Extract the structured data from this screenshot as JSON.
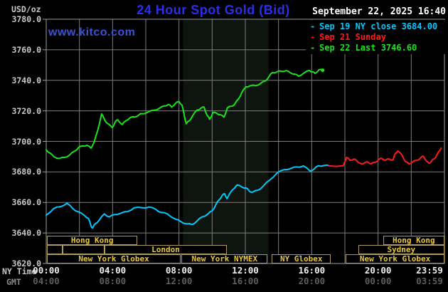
{
  "header": {
    "units_label": "USD/oz",
    "title": "24 Hour Spot Gold (Bid)",
    "date": "September 22, 2025 16:40",
    "watermark": "www.kitco.com"
  },
  "legend": [
    {
      "key": "sep19",
      "label": "Sep 19 NY close 3684.00",
      "color": "#00c8ff"
    },
    {
      "key": "sep21",
      "label": "Sep 21 Sunday",
      "color": "#ff1a1a"
    },
    {
      "key": "sep22",
      "label": "Sep 22 Last 3746.60",
      "color": "#1ae31a"
    }
  ],
  "colors": {
    "background": "#000000",
    "grid": "#7d7d7d",
    "axis_frame": "#9a9a9a",
    "session_shade": "#0e150e",
    "session_border": "#b09a5a",
    "session_text": "#e8c63a",
    "title_blue": "#2b2fe8",
    "watermark_blue": "#3a52d5"
  },
  "axes": {
    "y_ticks": [
      "3780.0",
      "3760.0",
      "3740.0",
      "3720.0",
      "3700.0",
      "3680.0",
      "3660.0",
      "3640.0",
      "3620.0"
    ],
    "x_row1_label": "NY Time",
    "x_row2_label": "GMT",
    "x_tick_hours": [
      0,
      4,
      8,
      12,
      16,
      20,
      23.983
    ],
    "x_ticks_ny": [
      "00:00",
      "04:00",
      "08:00",
      "12:00",
      "16:00",
      "20:00",
      "23:59"
    ],
    "x_ticks_gmt": [
      "04:00",
      "08:00",
      "12:00",
      "16:00",
      "20:00",
      "00:00",
      "03:59"
    ]
  },
  "sessions": {
    "rows": [
      {
        "boxes": [
          {
            "start_h": 0.05,
            "end_h": 5.5,
            "label": "Hong Kong"
          },
          {
            "start_h": 20.3,
            "end_h": 24.0,
            "label": "Hong Kong"
          }
        ]
      },
      {
        "boxes": [
          {
            "start_h": 0.05,
            "end_h": 1.0,
            "label": ""
          },
          {
            "start_h": 1.0,
            "end_h": 3.5,
            "label": ""
          },
          {
            "start_h": 3.5,
            "end_h": 10.9,
            "label": "London"
          },
          {
            "start_h": 18.8,
            "end_h": 24.0,
            "label": "Sydney"
          }
        ]
      },
      {
        "boxes": [
          {
            "start_h": 0.05,
            "end_h": 8.1,
            "label": "New York Globex"
          },
          {
            "start_h": 8.15,
            "end_h": 13.35,
            "label": "New York NYMEX"
          },
          {
            "start_h": 13.6,
            "end_h": 17.15,
            "label": "NY Globex"
          },
          {
            "start_h": 18.05,
            "end_h": 24.0,
            "label": "New York Globex"
          }
        ]
      }
    ]
  },
  "chart_data": {
    "type": "line",
    "title": "24 Hour Spot Gold (Bid)",
    "ylabel": "USD/oz",
    "xlabel": "NY Time (hours 00:00-23:59)",
    "xlim": [
      0,
      24
    ],
    "ylim": [
      3620,
      3780
    ],
    "y_gridline_step": 20,
    "x_gridline_step_hours": 2,
    "grid": true,
    "legend_position": "top-right",
    "shaded_session_hours": [
      8.25,
      13.4
    ],
    "series": [
      {
        "key": "sep19",
        "name": "Sep 19 NY close 3684.00",
        "color": "#00c8ff",
        "points": [
          [
            0,
            3651.7
          ],
          [
            0.45,
            3656
          ],
          [
            0.85,
            3657.2
          ],
          [
            1.25,
            3659.5
          ],
          [
            1.6,
            3656
          ],
          [
            1.9,
            3654
          ],
          [
            2.3,
            3651.5
          ],
          [
            2.55,
            3649.5
          ],
          [
            2.7,
            3644.5
          ],
          [
            2.8,
            3643.3
          ],
          [
            2.95,
            3646
          ],
          [
            3.2,
            3648.5
          ],
          [
            3.5,
            3652.5
          ],
          [
            3.8,
            3650.5
          ],
          [
            4.1,
            3652
          ],
          [
            4.5,
            3653
          ],
          [
            4.9,
            3654
          ],
          [
            5.3,
            3656.5
          ],
          [
            5.8,
            3656.5
          ],
          [
            6.2,
            3657
          ],
          [
            6.6,
            3655.5
          ],
          [
            6.9,
            3653.5
          ],
          [
            7.3,
            3652.5
          ],
          [
            7.8,
            3649
          ],
          [
            8.1,
            3647.5
          ],
          [
            8.45,
            3646
          ],
          [
            8.8,
            3645.5
          ],
          [
            9.1,
            3648
          ],
          [
            9.4,
            3650.5
          ],
          [
            9.75,
            3652.5
          ],
          [
            10,
            3654.5
          ],
          [
            10.2,
            3658
          ],
          [
            10.4,
            3661.5
          ],
          [
            10.6,
            3664.5
          ],
          [
            10.75,
            3665.7
          ],
          [
            10.9,
            3662.5
          ],
          [
            11.2,
            3668
          ],
          [
            11.5,
            3671.5
          ],
          [
            11.8,
            3670
          ],
          [
            12.05,
            3669.5
          ],
          [
            12.25,
            3667.3
          ],
          [
            12.45,
            3666.8
          ],
          [
            12.75,
            3668
          ],
          [
            13.05,
            3670.4
          ],
          [
            13.5,
            3675
          ],
          [
            13.9,
            3679.2
          ],
          [
            14.35,
            3681.5
          ],
          [
            14.8,
            3682.5
          ],
          [
            15.1,
            3683.2
          ],
          [
            15.5,
            3683.9
          ],
          [
            15.9,
            3680.6
          ],
          [
            16.15,
            3682
          ],
          [
            16.4,
            3684
          ],
          [
            16.75,
            3684.2
          ],
          [
            17.05,
            3684
          ]
        ]
      },
      {
        "key": "sep21",
        "name": "Sep 21 Sunday",
        "color": "#ff1a1a",
        "points": [
          [
            17.05,
            3684
          ],
          [
            17.9,
            3684
          ],
          [
            18.02,
            3687
          ],
          [
            18.1,
            3689.5
          ],
          [
            18.3,
            3687.6
          ],
          [
            18.55,
            3688.5
          ],
          [
            18.8,
            3686.3
          ],
          [
            19.1,
            3685.3
          ],
          [
            19.35,
            3686.6
          ],
          [
            19.6,
            3685.3
          ],
          [
            19.8,
            3686.3
          ],
          [
            20,
            3687.6
          ],
          [
            20.2,
            3689
          ],
          [
            20.45,
            3687.6
          ],
          [
            20.65,
            3688.5
          ],
          [
            20.9,
            3687.8
          ],
          [
            21.05,
            3692.3
          ],
          [
            21.18,
            3693.7
          ],
          [
            21.45,
            3690.9
          ],
          [
            21.65,
            3686.7
          ],
          [
            21.85,
            3685.3
          ],
          [
            22.1,
            3686.7
          ],
          [
            22.35,
            3687.6
          ],
          [
            22.55,
            3689
          ],
          [
            22.72,
            3690.4
          ],
          [
            22.95,
            3686.7
          ],
          [
            23.05,
            3685.7
          ],
          [
            23.2,
            3686.7
          ],
          [
            23.35,
            3688.5
          ],
          [
            23.5,
            3690
          ],
          [
            23.65,
            3693.2
          ],
          [
            23.8,
            3695.6
          ]
        ]
      },
      {
        "key": "sep22",
        "name": "Sep 22 Last 3746.60",
        "color": "#1ae31a",
        "points": [
          [
            0,
            3694.5
          ],
          [
            0.2,
            3692.5
          ],
          [
            0.45,
            3690
          ],
          [
            0.8,
            3688.8
          ],
          [
            1.1,
            3689.5
          ],
          [
            1.4,
            3691
          ],
          [
            1.7,
            3693.5
          ],
          [
            1.95,
            3696
          ],
          [
            2.2,
            3697
          ],
          [
            2.45,
            3697.5
          ],
          [
            2.7,
            3695.5
          ],
          [
            2.9,
            3700
          ],
          [
            3.1,
            3707
          ],
          [
            3.34,
            3718
          ],
          [
            3.5,
            3714.5
          ],
          [
            3.66,
            3712
          ],
          [
            3.98,
            3709
          ],
          [
            4.15,
            3712.5
          ],
          [
            4.3,
            3714.2
          ],
          [
            4.58,
            3711
          ],
          [
            4.8,
            3713.5
          ],
          [
            5.05,
            3715.5
          ],
          [
            5.35,
            3716
          ],
          [
            5.6,
            3717.5
          ],
          [
            5.78,
            3718.1
          ],
          [
            6.1,
            3719
          ],
          [
            6.51,
            3720.5
          ],
          [
            6.8,
            3721.5
          ],
          [
            7.1,
            3723.2
          ],
          [
            7.37,
            3724.2
          ],
          [
            7.55,
            3722.5
          ],
          [
            7.8,
            3725
          ],
          [
            8.01,
            3726
          ],
          [
            8.18,
            3723.8
          ],
          [
            8.3,
            3718
          ],
          [
            8.44,
            3711.5
          ],
          [
            8.62,
            3713.5
          ],
          [
            8.78,
            3716
          ],
          [
            9.08,
            3720.5
          ],
          [
            9.3,
            3721.5
          ],
          [
            9.51,
            3722.5
          ],
          [
            9.7,
            3717
          ],
          [
            9.85,
            3714.5
          ],
          [
            10.06,
            3719
          ],
          [
            10.3,
            3718.2
          ],
          [
            10.49,
            3717.5
          ],
          [
            10.71,
            3715.8
          ],
          [
            10.92,
            3722
          ],
          [
            11.15,
            3723
          ],
          [
            11.35,
            3724.2
          ],
          [
            11.6,
            3728
          ],
          [
            11.78,
            3731.9
          ],
          [
            12.04,
            3735.7
          ],
          [
            12.3,
            3736.5
          ],
          [
            12.63,
            3736.5
          ],
          [
            12.93,
            3738
          ],
          [
            13.19,
            3739.5
          ],
          [
            13.4,
            3742
          ],
          [
            13.62,
            3745
          ],
          [
            13.9,
            3745.5
          ],
          [
            14.13,
            3746
          ],
          [
            14.45,
            3746.3
          ],
          [
            14.7,
            3745
          ],
          [
            15,
            3744
          ],
          [
            15.2,
            3742.7
          ],
          [
            15.5,
            3744.5
          ],
          [
            15.85,
            3746.5
          ],
          [
            16.05,
            3745.5
          ],
          [
            16.2,
            3744.5
          ],
          [
            16.45,
            3747
          ],
          [
            16.66,
            3746.6
          ]
        ]
      }
    ]
  }
}
